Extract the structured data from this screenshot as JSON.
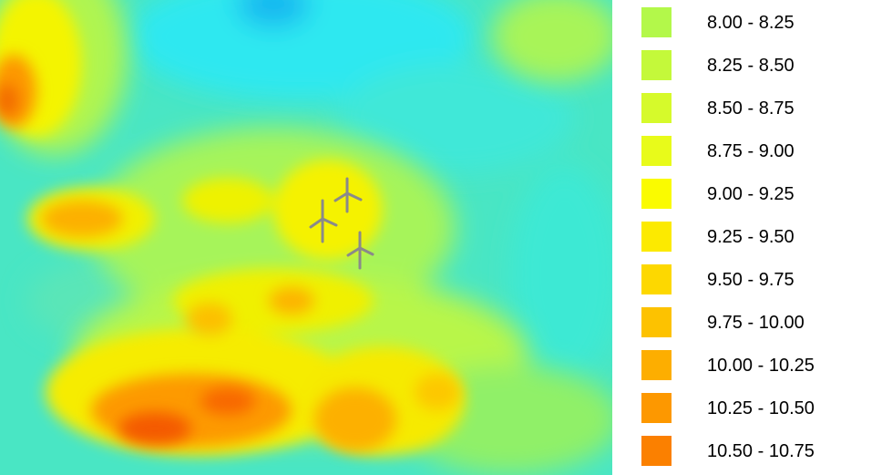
{
  "map": {
    "base_color": "#49e6c4",
    "turbine_icon": "wind-turbine-icon",
    "turbine_color": "#8a8a8a"
  },
  "legend": {
    "items": [
      {
        "label": "8.00 - 8.25",
        "color": "#b3f84a"
      },
      {
        "label": "8.25 - 8.50",
        "color": "#c4f93a"
      },
      {
        "label": "8.50 - 8.75",
        "color": "#d6fa2b"
      },
      {
        "label": "8.75 - 9.00",
        "color": "#e8fb1a"
      },
      {
        "label": "9.00 - 9.25",
        "color": "#fafb00"
      },
      {
        "label": "9.25 - 9.50",
        "color": "#fcea00"
      },
      {
        "label": "9.50 - 9.75",
        "color": "#fdd800"
      },
      {
        "label": "9.75 - 10.00",
        "color": "#fdc200"
      },
      {
        "label": "10.00 - 10.25",
        "color": "#fdae00"
      },
      {
        "label": "10.25 - 10.50",
        "color": "#fd9800"
      },
      {
        "label": "10.50 - 10.75",
        "color": "#fb8000"
      }
    ]
  }
}
